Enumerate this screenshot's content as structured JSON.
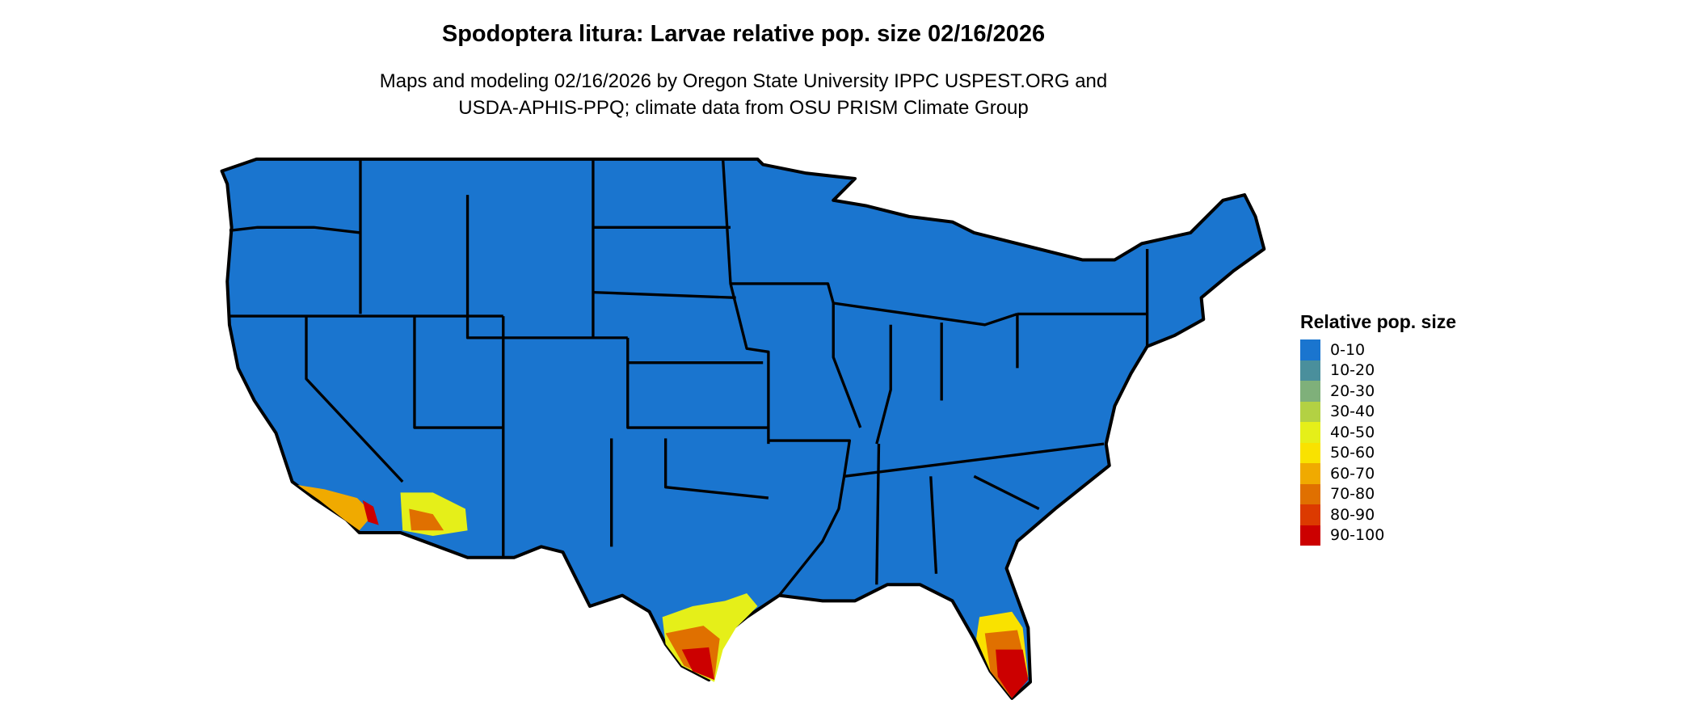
{
  "title": "Spodoptera litura: Larvae relative pop. size 02/16/2026",
  "subtitle": [
    "Maps and modeling 02/16/2026 by Oregon State University IPPC USPEST.ORG and",
    "USDA-APHIS-PPQ; climate data from OSU PRISM Climate Group"
  ],
  "legend": {
    "title": "Relative pop. size",
    "items": [
      {
        "label": "0-10",
        "color": "#1a75cf"
      },
      {
        "label": "10-20",
        "color": "#4a8f9c"
      },
      {
        "label": "20-30",
        "color": "#7fb07a"
      },
      {
        "label": "30-40",
        "color": "#b3d143"
      },
      {
        "label": "40-50",
        "color": "#e5ef19"
      },
      {
        "label": "50-60",
        "color": "#f9e200"
      },
      {
        "label": "60-70",
        "color": "#f0aa00"
      },
      {
        "label": "70-80",
        "color": "#e07000"
      },
      {
        "label": "80-90",
        "color": "#dc3a00"
      },
      {
        "label": "90-100",
        "color": "#cc0000"
      }
    ]
  },
  "map": {
    "region": "Contiguous United States",
    "base_color": "#1a75cf",
    "border_color": "#000000",
    "hotspots": [
      "southern California",
      "southwest Arizona",
      "south Texas",
      "south Florida"
    ]
  }
}
